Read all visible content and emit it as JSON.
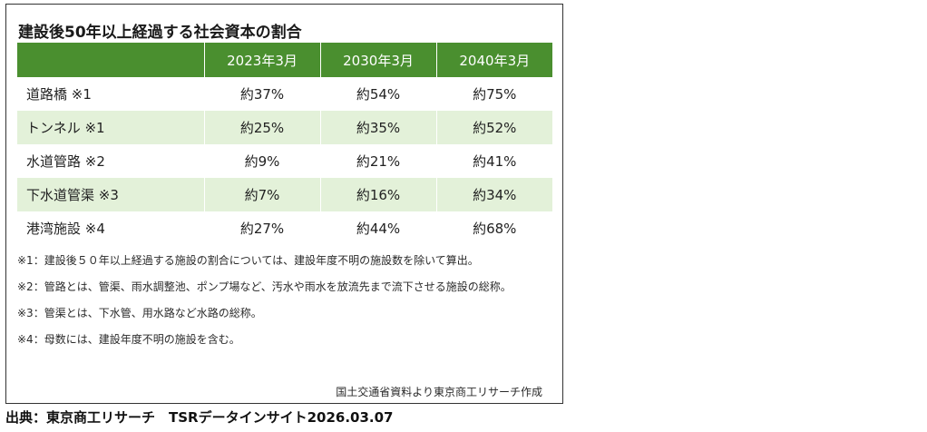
{
  "title": "建設後50年以上経過する社会資本の割合",
  "chart_data": {
    "type": "table",
    "title": "建設後50年以上経過する社会資本の割合",
    "columns": [
      "",
      "2023年3月",
      "2030年3月",
      "2040年3月"
    ],
    "rows": [
      {
        "label": "道路橋 ※1",
        "values": [
          "約37%",
          "約54%",
          "約75%"
        ]
      },
      {
        "label": "トンネル ※1",
        "values": [
          "約25%",
          "約35%",
          "約52%"
        ]
      },
      {
        "label": "水道管路 ※2",
        "values": [
          "約9%",
          "約21%",
          "約41%"
        ]
      },
      {
        "label": "下水道管渠 ※3",
        "values": [
          "約7%",
          "約16%",
          "約34%"
        ]
      },
      {
        "label": "港湾施設 ※4",
        "values": [
          "約27%",
          "約44%",
          "約68%"
        ]
      }
    ],
    "colors": {
      "header_bg": "#4a8f2f",
      "header_text": "#ffffff",
      "stripe_bg": "#e3f1d9"
    }
  },
  "notes": [
    "※1：建設後５０年以上経過する施設の割合については、建設年度不明の施設数を除いて算出。",
    "※2：管路とは、管渠、雨水調整池、ポンプ場など、汚水や雨水を放流先まで流下させる施設の総称。",
    "※3：管渠とは、下水管、用水路など水路の総称。",
    "※4：母数には、建設年度不明の施設を含む。"
  ],
  "source": "国土交通省資料より東京商工リサーチ作成",
  "credit": "出典：東京商工リサーチ　TSRデータインサイト2026.03.07"
}
